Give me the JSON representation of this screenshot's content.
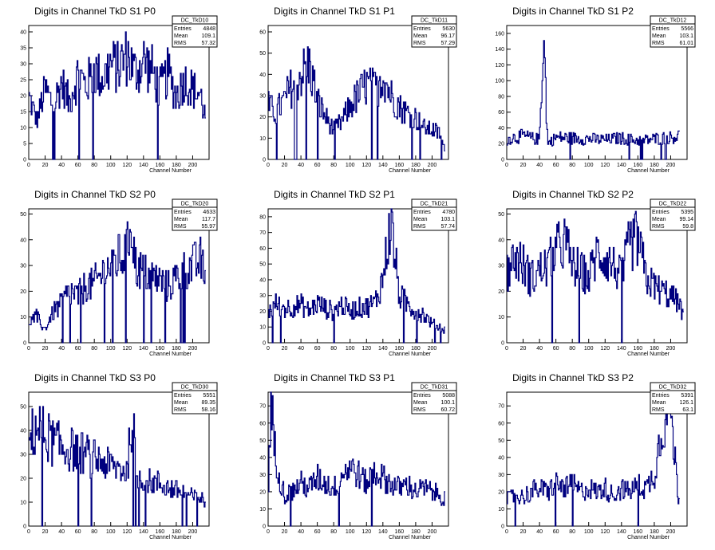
{
  "chart_data": [
    {
      "type": "line",
      "title": "Digits in Channel TkD S1 P0",
      "xlabel": "Channel Number",
      "ylabel": "",
      "xlim": [
        0,
        220
      ],
      "ylim": [
        0,
        42
      ],
      "xticks": [
        0,
        20,
        40,
        60,
        80,
        100,
        120,
        140,
        160,
        180,
        200
      ],
      "yticks": [
        0,
        5,
        10,
        15,
        20,
        25,
        30,
        35,
        40
      ],
      "stats": {
        "name": "DC_TkD10",
        "rows": [
          [
            "Entries",
            "4848"
          ],
          [
            "Mean",
            "109.1"
          ],
          [
            "RMS",
            "57.32"
          ]
        ]
      },
      "x": [
        0,
        10,
        20,
        30,
        40,
        50,
        60,
        70,
        80,
        90,
        100,
        110,
        120,
        130,
        140,
        150,
        160,
        170,
        180,
        190,
        200,
        210,
        215
      ],
      "values": [
        20,
        12,
        22,
        17,
        24,
        18,
        27,
        23,
        28,
        25,
        30,
        29,
        33,
        27,
        31,
        28,
        22,
        27,
        20,
        25,
        22,
        20,
        14
      ]
    },
    {
      "type": "line",
      "title": "Digits in Channel TkD S1 P1",
      "xlabel": "Channel Number",
      "ylabel": "",
      "xlim": [
        0,
        220
      ],
      "ylim": [
        0,
        63
      ],
      "xticks": [
        0,
        20,
        40,
        60,
        80,
        100,
        120,
        140,
        160,
        180,
        200
      ],
      "yticks": [
        0,
        10,
        20,
        30,
        40,
        50,
        60
      ],
      "stats": {
        "name": "DC_TkD11",
        "rows": [
          [
            "Entries",
            "5630"
          ],
          [
            "Mean",
            "96.17"
          ],
          [
            "RMS",
            "57.29"
          ]
        ]
      },
      "x": [
        0,
        10,
        20,
        30,
        40,
        50,
        60,
        70,
        80,
        90,
        100,
        110,
        120,
        130,
        140,
        150,
        160,
        170,
        180,
        190,
        200,
        210,
        215
      ],
      "values": [
        25,
        22,
        28,
        35,
        40,
        45,
        28,
        20,
        14,
        18,
        25,
        30,
        35,
        33,
        40,
        30,
        25,
        22,
        20,
        15,
        14,
        12,
        5
      ]
    },
    {
      "type": "line",
      "title": "Digits in Channel TkD S1 P2",
      "xlabel": "Channel Number",
      "ylabel": "",
      "xlim": [
        0,
        220
      ],
      "ylim": [
        0,
        170
      ],
      "xticks": [
        0,
        20,
        40,
        60,
        80,
        100,
        120,
        140,
        160,
        180,
        200
      ],
      "yticks": [
        0,
        20,
        40,
        60,
        80,
        100,
        120,
        140,
        160
      ],
      "stats": {
        "name": "DC_TkD12",
        "rows": [
          [
            "Entries",
            "5566"
          ],
          [
            "Mean",
            "103.1"
          ],
          [
            "RMS",
            "61.01"
          ]
        ]
      },
      "x": [
        0,
        10,
        20,
        30,
        40,
        45,
        50,
        60,
        80,
        100,
        120,
        140,
        160,
        180,
        200,
        210
      ],
      "values": [
        25,
        28,
        30,
        27,
        25,
        163,
        20,
        28,
        27,
        26,
        25,
        27,
        24,
        26,
        28,
        30
      ]
    },
    {
      "type": "line",
      "title": "Digits in Channel TkD S2 P0",
      "xlabel": "Channel Number",
      "ylabel": "",
      "xlim": [
        0,
        220
      ],
      "ylim": [
        0,
        52
      ],
      "xticks": [
        0,
        20,
        40,
        60,
        80,
        100,
        120,
        140,
        160,
        180,
        200
      ],
      "yticks": [
        0,
        10,
        20,
        30,
        40,
        50
      ],
      "stats": {
        "name": "DC_TkD20",
        "rows": [
          [
            "Entries",
            "4633"
          ],
          [
            "Mean",
            "117.7"
          ],
          [
            "RMS",
            "55.97"
          ]
        ]
      },
      "x": [
        0,
        10,
        20,
        30,
        40,
        50,
        60,
        70,
        80,
        90,
        100,
        110,
        120,
        125,
        130,
        140,
        150,
        160,
        170,
        180,
        190,
        200,
        210,
        215
      ],
      "values": [
        8,
        10,
        5,
        12,
        15,
        20,
        18,
        22,
        23,
        27,
        30,
        33,
        35,
        50,
        30,
        27,
        26,
        24,
        22,
        25,
        28,
        30,
        32,
        25
      ]
    },
    {
      "type": "line",
      "title": "Digits in Channel TkD S2 P1",
      "xlabel": "Channel Number",
      "ylabel": "",
      "xlim": [
        0,
        220
      ],
      "ylim": [
        0,
        85
      ],
      "xticks": [
        0,
        20,
        40,
        60,
        80,
        100,
        120,
        140,
        160,
        180,
        200
      ],
      "yticks": [
        0,
        10,
        20,
        30,
        40,
        50,
        60,
        70,
        80
      ],
      "stats": {
        "name": "DC_TkD21",
        "rows": [
          [
            "Entries",
            "4780"
          ],
          [
            "Mean",
            "103.1"
          ],
          [
            "RMS",
            "57.74"
          ]
        ]
      },
      "x": [
        0,
        10,
        20,
        30,
        40,
        50,
        60,
        70,
        80,
        90,
        100,
        110,
        120,
        130,
        140,
        145,
        150,
        160,
        170,
        180,
        190,
        200,
        210,
        215
      ],
      "values": [
        20,
        25,
        22,
        23,
        24,
        20,
        25,
        22,
        20,
        24,
        20,
        22,
        23,
        25,
        40,
        60,
        78,
        30,
        25,
        20,
        18,
        12,
        10,
        8
      ]
    },
    {
      "type": "line",
      "title": "Digits in Channel TkD S2 P2",
      "xlabel": "Channel Number",
      "ylabel": "",
      "xlim": [
        0,
        220
      ],
      "ylim": [
        0,
        52
      ],
      "xticks": [
        0,
        20,
        40,
        60,
        80,
        100,
        120,
        140,
        160,
        180,
        200
      ],
      "yticks": [
        0,
        10,
        20,
        30,
        40,
        50
      ],
      "stats": {
        "name": "DC_TkD22",
        "rows": [
          [
            "Entries",
            "5395"
          ],
          [
            "Mean",
            "99.14"
          ],
          [
            "RMS",
            "59.8"
          ]
        ]
      },
      "x": [
        0,
        10,
        20,
        30,
        40,
        50,
        60,
        70,
        80,
        90,
        100,
        110,
        120,
        130,
        140,
        150,
        160,
        170,
        180,
        190,
        200,
        210,
        215
      ],
      "values": [
        28,
        33,
        30,
        25,
        28,
        30,
        35,
        40,
        30,
        28,
        25,
        35,
        33,
        30,
        25,
        38,
        40,
        25,
        22,
        20,
        18,
        16,
        10
      ]
    },
    {
      "type": "line",
      "title": "Digits in Channel TkD S3 P0",
      "xlabel": "Channel Number",
      "ylabel": "",
      "xlim": [
        0,
        220
      ],
      "ylim": [
        0,
        56
      ],
      "xticks": [
        0,
        20,
        40,
        60,
        80,
        100,
        120,
        140,
        160,
        180,
        200
      ],
      "yticks": [
        0,
        10,
        20,
        30,
        40,
        50
      ],
      "stats": {
        "name": "DC_TkD30",
        "rows": [
          [
            "Entries",
            "5551"
          ],
          [
            "Mean",
            "89.35"
          ],
          [
            "RMS",
            "58.16"
          ]
        ]
      },
      "x": [
        0,
        10,
        20,
        30,
        40,
        50,
        60,
        70,
        80,
        90,
        100,
        110,
        120,
        128,
        130,
        140,
        150,
        160,
        170,
        180,
        190,
        200,
        210,
        215
      ],
      "values": [
        35,
        42,
        38,
        35,
        33,
        32,
        31,
        30,
        28,
        27,
        25,
        24,
        23,
        52,
        22,
        20,
        18,
        18,
        16,
        15,
        14,
        12,
        12,
        10
      ]
    },
    {
      "type": "line",
      "title": "Digits in Channel TkD S3 P1",
      "xlabel": "Channel Number",
      "ylabel": "",
      "xlim": [
        0,
        220
      ],
      "ylim": [
        0,
        78
      ],
      "xticks": [
        0,
        20,
        40,
        60,
        80,
        100,
        120,
        140,
        160,
        180,
        200
      ],
      "yticks": [
        0,
        10,
        20,
        30,
        40,
        50,
        60,
        70
      ],
      "stats": {
        "name": "DC_TkD31",
        "rows": [
          [
            "Entries",
            "5088"
          ],
          [
            "Mean",
            "100.1"
          ],
          [
            "RMS",
            "60.72"
          ]
        ]
      },
      "x": [
        0,
        3,
        8,
        15,
        20,
        30,
        40,
        50,
        60,
        70,
        80,
        90,
        100,
        110,
        120,
        130,
        140,
        150,
        160,
        170,
        180,
        190,
        200,
        210,
        215
      ],
      "values": [
        10,
        75,
        45,
        28,
        18,
        20,
        25,
        22,
        28,
        25,
        22,
        30,
        35,
        30,
        25,
        32,
        28,
        25,
        22,
        24,
        20,
        22,
        20,
        18,
        16
      ]
    },
    {
      "type": "line",
      "title": "Digits in Channel TkD S3 P2",
      "xlabel": "Channel Number",
      "ylabel": "",
      "xlim": [
        0,
        220
      ],
      "ylim": [
        0,
        78
      ],
      "xticks": [
        0,
        20,
        40,
        60,
        80,
        100,
        120,
        140,
        160,
        180,
        200
      ],
      "yticks": [
        0,
        10,
        20,
        30,
        40,
        50,
        60,
        70
      ],
      "stats": {
        "name": "DC_TkD32",
        "rows": [
          [
            "Entries",
            "5391"
          ],
          [
            "Mean",
            "126.1"
          ],
          [
            "RMS",
            "63.1"
          ]
        ]
      },
      "x": [
        0,
        10,
        20,
        30,
        40,
        50,
        60,
        70,
        80,
        90,
        100,
        110,
        120,
        130,
        140,
        150,
        160,
        170,
        180,
        190,
        200,
        205,
        210
      ],
      "values": [
        15,
        18,
        17,
        20,
        22,
        20,
        25,
        22,
        24,
        20,
        22,
        20,
        22,
        18,
        22,
        20,
        24,
        22,
        30,
        60,
        70,
        40,
        15
      ]
    }
  ]
}
